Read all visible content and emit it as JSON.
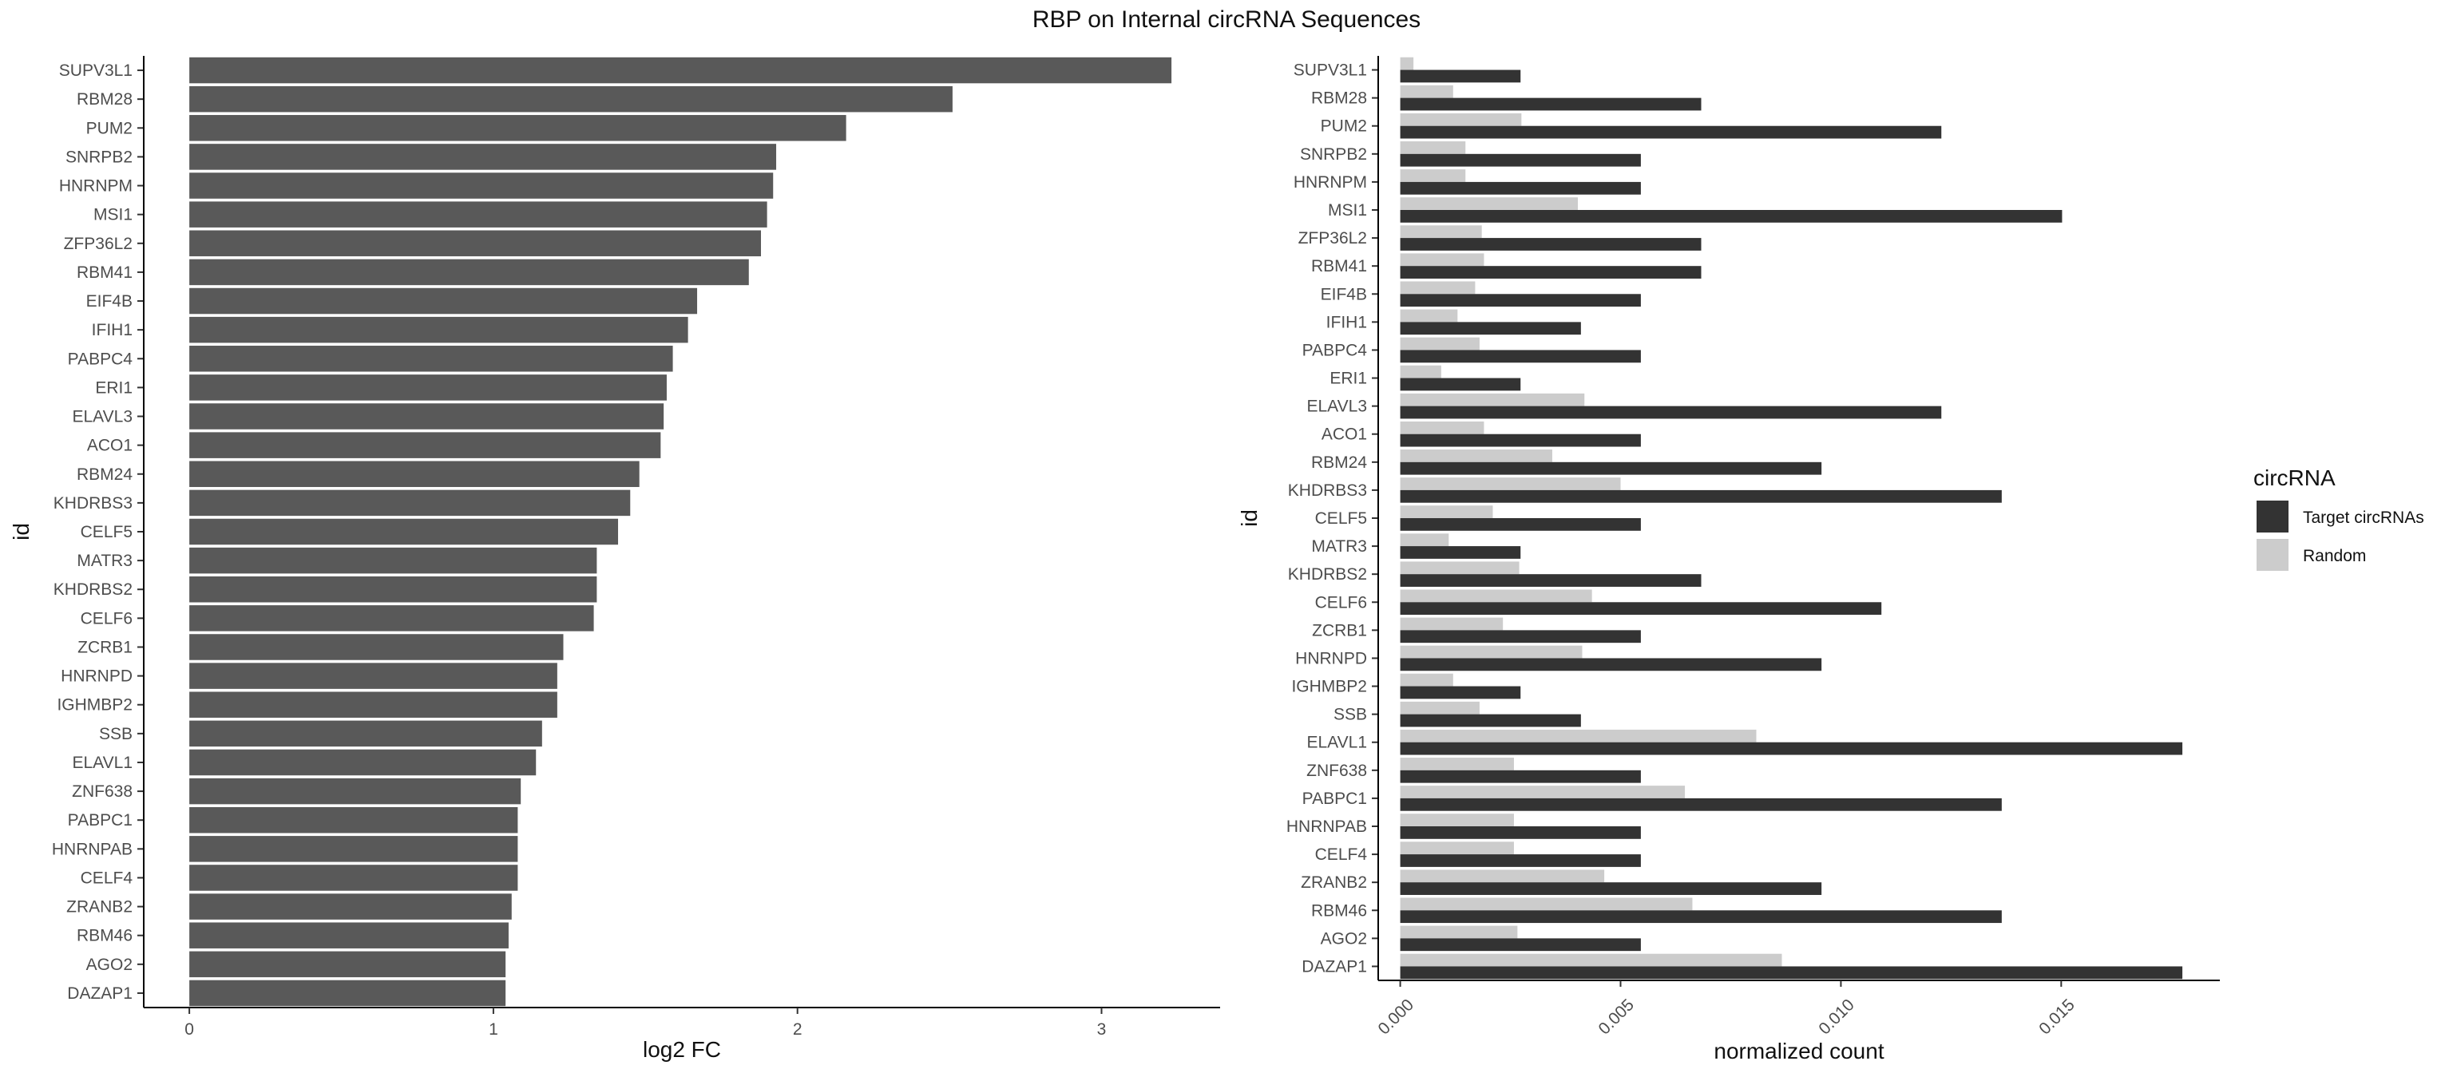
{
  "chart_data": [
    {
      "type": "bar",
      "orientation": "horizontal",
      "title": "RBP on Internal circRNA Sequences",
      "categories": [
        "SUPV3L1",
        "RBM28",
        "PUM2",
        "SNRPB2",
        "HNRNPM",
        "MSI1",
        "ZFP36L2",
        "RBM41",
        "EIF4B",
        "IFIH1",
        "PABPC4",
        "ERI1",
        "ELAVL3",
        "ACO1",
        "RBM24",
        "KHDRBS3",
        "CELF5",
        "MATR3",
        "KHDRBS2",
        "CELF6",
        "ZCRB1",
        "HNRNPD",
        "IGHMBP2",
        "SSB",
        "ELAVL1",
        "ZNF638",
        "PABPC1",
        "HNRNPAB",
        "CELF4",
        "ZRANB2",
        "RBM46",
        "AGO2",
        "DAZAP1"
      ],
      "values": [
        3.23,
        2.51,
        2.16,
        1.93,
        1.92,
        1.9,
        1.88,
        1.84,
        1.67,
        1.64,
        1.59,
        1.57,
        1.56,
        1.55,
        1.48,
        1.45,
        1.41,
        1.34,
        1.34,
        1.33,
        1.23,
        1.21,
        1.21,
        1.16,
        1.14,
        1.09,
        1.08,
        1.08,
        1.08,
        1.06,
        1.05,
        1.04,
        1.04
      ],
      "xlabel": "log2 FC",
      "ylabel": "id",
      "xlim": [
        -0.15,
        3.39
      ],
      "xticks": [
        0,
        1,
        2,
        3
      ],
      "bar_color": "#595959",
      "grid": false
    },
    {
      "type": "bar",
      "orientation": "horizontal",
      "grouped": true,
      "categories": [
        "SUPV3L1",
        "RBM28",
        "PUM2",
        "SNRPB2",
        "HNRNPM",
        "MSI1",
        "ZFP36L2",
        "RBM41",
        "EIF4B",
        "IFIH1",
        "PABPC4",
        "ERI1",
        "ELAVL3",
        "ACO1",
        "RBM24",
        "KHDRBS3",
        "CELF5",
        "MATR3",
        "KHDRBS2",
        "CELF6",
        "ZCRB1",
        "HNRNPD",
        "IGHMBP2",
        "SSB",
        "ELAVL1",
        "ZNF638",
        "PABPC1",
        "HNRNPAB",
        "CELF4",
        "ZRANB2",
        "RBM46",
        "AGO2",
        "DAZAP1"
      ],
      "series": [
        {
          "name": "Target circRNAs",
          "color": "#333333",
          "values": [
            0.00273,
            0.00683,
            0.01228,
            0.00546,
            0.00546,
            0.01502,
            0.00683,
            0.00683,
            0.00546,
            0.0041,
            0.00546,
            0.00273,
            0.01228,
            0.00546,
            0.00956,
            0.01365,
            0.00546,
            0.00273,
            0.00683,
            0.01092,
            0.00546,
            0.00956,
            0.00273,
            0.0041,
            0.01775,
            0.00546,
            0.01365,
            0.00546,
            0.00546,
            0.00956,
            0.01365,
            0.00546,
            0.01775
          ]
        },
        {
          "name": "Random",
          "color": "#cccccc",
          "values": [
            0.0003,
            0.0012,
            0.00275,
            0.00148,
            0.00148,
            0.00403,
            0.00185,
            0.0019,
            0.0017,
            0.0013,
            0.0018,
            0.00093,
            0.00418,
            0.0019,
            0.00345,
            0.005,
            0.0021,
            0.0011,
            0.0027,
            0.00435,
            0.00233,
            0.00413,
            0.0012,
            0.0018,
            0.00808,
            0.00258,
            0.00646,
            0.00258,
            0.00258,
            0.00463,
            0.00663,
            0.00266,
            0.00866
          ]
        }
      ],
      "xlabel": "normalized count",
      "ylabel": "id",
      "xlim": [
        -0.0005,
        0.0186
      ],
      "xticks": [
        0.0,
        0.005,
        0.01,
        0.015
      ],
      "xtick_labels": [
        "0.000",
        "0.005",
        "0.010",
        "0.015"
      ],
      "legend_title": "circRNA",
      "legend_position": "right",
      "grid": false
    }
  ]
}
